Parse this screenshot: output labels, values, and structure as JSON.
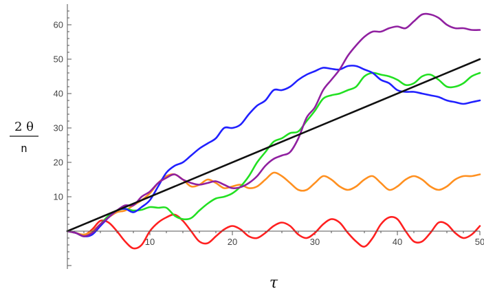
{
  "chart_data": {
    "type": "line",
    "title": "",
    "xlabel": "τ",
    "ylabel": {
      "numerator": "2 θ",
      "denominator": "n"
    },
    "xlim": [
      0,
      50
    ],
    "ylim": [
      -11,
      66
    ],
    "xticks": [
      10,
      20,
      30,
      40,
      50
    ],
    "yticks": [
      10,
      20,
      30,
      40,
      50,
      60
    ],
    "grid": false,
    "legend": "none",
    "series": [
      {
        "color": "#ff2020",
        "x": [
          0,
          1,
          2,
          3,
          4,
          5,
          6,
          7,
          8,
          9,
          10,
          11,
          12,
          13,
          14,
          15,
          16,
          17,
          18,
          19,
          20,
          21,
          22,
          23,
          24,
          25,
          26,
          27,
          28,
          29,
          30,
          31,
          32,
          33,
          34,
          35,
          36,
          37,
          38,
          39,
          40,
          41,
          42,
          43,
          44,
          45,
          46,
          47,
          48,
          49,
          50
        ],
        "y": [
          0,
          -0.5,
          -1.2,
          0.5,
          3,
          2.5,
          0,
          -3,
          -5,
          -4,
          0,
          2.5,
          4,
          4.8,
          3,
          0,
          -3,
          -3.5,
          -1.5,
          0.5,
          1.5,
          0.5,
          -1.5,
          -2,
          -0.5,
          1.5,
          2.5,
          1.5,
          -1,
          -2,
          -0.5,
          2,
          3.5,
          2.5,
          -0.5,
          -3,
          -4.5,
          -2,
          2,
          4,
          3.5,
          0,
          -3,
          -3,
          -0.5,
          2.5,
          2,
          -0.5,
          -2,
          -1,
          1.5
        ]
      },
      {
        "color": "#ff9020",
        "x": [
          0,
          1,
          2,
          3,
          4,
          5,
          6,
          7,
          8,
          9,
          10,
          11,
          12,
          13,
          14,
          15,
          16,
          17,
          18,
          19,
          20,
          21,
          22,
          23,
          24,
          25,
          26,
          27,
          28,
          29,
          30,
          31,
          32,
          33,
          34,
          35,
          36,
          37,
          38,
          39,
          40,
          41,
          42,
          43,
          44,
          45,
          46,
          47,
          48,
          49,
          50
        ],
        "y": [
          0,
          -0.5,
          -1,
          0,
          2,
          4,
          5.5,
          6,
          7.5,
          9,
          11,
          14,
          16,
          16.5,
          15,
          13,
          13.5,
          15,
          14,
          12.5,
          13,
          13.5,
          12.5,
          13,
          15,
          17,
          16,
          14,
          12,
          12,
          14,
          16,
          15,
          13,
          12,
          13,
          15,
          16,
          14,
          12,
          13,
          15,
          16,
          15,
          13,
          12,
          13,
          15,
          16,
          16,
          16.5
        ]
      },
      {
        "color": "#22e022",
        "x": [
          0,
          1,
          2,
          3,
          4,
          5,
          6,
          7,
          8,
          9,
          10,
          11,
          12,
          13,
          14,
          15,
          16,
          17,
          18,
          19,
          20,
          21,
          22,
          23,
          24,
          25,
          26,
          27,
          28,
          29,
          30,
          31,
          32,
          33,
          34,
          35,
          36,
          37,
          38,
          39,
          40,
          41,
          42,
          43,
          44,
          45,
          46,
          47,
          48,
          49,
          50
        ],
        "y": [
          0,
          -0.5,
          -1.5,
          -0.5,
          2,
          4.5,
          6,
          6.5,
          6,
          6.2,
          7,
          6.8,
          6.8,
          4.5,
          3.5,
          3.8,
          6,
          8,
          9.5,
          10,
          11,
          13,
          16,
          20,
          23,
          26,
          27,
          28.5,
          29,
          32,
          35,
          38.5,
          39.5,
          40,
          41,
          42,
          45,
          46,
          45.5,
          45,
          44,
          42.5,
          43,
          45,
          45.5,
          44,
          42,
          42,
          43,
          45,
          46
        ]
      },
      {
        "color": "#2020ff",
        "x": [
          0,
          1,
          2,
          3,
          4,
          5,
          6,
          7,
          8,
          9,
          10,
          11,
          12,
          13,
          14,
          15,
          16,
          17,
          18,
          19,
          20,
          21,
          22,
          23,
          24,
          25,
          26,
          27,
          28,
          29,
          30,
          31,
          32,
          33,
          34,
          35,
          36,
          37,
          38,
          39,
          40,
          41,
          42,
          43,
          44,
          45,
          46,
          47,
          48,
          49,
          50
        ],
        "y": [
          0,
          -0.5,
          -1.5,
          -1,
          1.5,
          4,
          6,
          6.5,
          5.5,
          7,
          9,
          13,
          17,
          19,
          20,
          22,
          24,
          25.5,
          27,
          30,
          30,
          31,
          34,
          36.5,
          38,
          41,
          41,
          42,
          44,
          45.5,
          46.5,
          47.5,
          47.2,
          47,
          48,
          48,
          47,
          46,
          44,
          43,
          41,
          40.5,
          40.5,
          40,
          39.5,
          39,
          38,
          37.5,
          37,
          37.5,
          38
        ]
      },
      {
        "color": "#9020a0",
        "x": [
          0,
          1,
          2,
          3,
          4,
          5,
          6,
          7,
          8,
          9,
          10,
          11,
          12,
          13,
          14,
          15,
          16,
          17,
          18,
          19,
          20,
          21,
          22,
          23,
          24,
          25,
          26,
          27,
          28,
          29,
          30,
          31,
          32,
          33,
          34,
          35,
          36,
          37,
          38,
          39,
          40,
          41,
          42,
          43,
          44,
          45,
          46,
          47,
          48,
          49,
          50
        ],
        "y": [
          0,
          -0.5,
          -1.5,
          -0.5,
          2,
          4,
          6,
          7.5,
          7.5,
          10,
          11.5,
          14,
          15.5,
          16.5,
          15,
          14,
          13.5,
          14,
          14.5,
          13.5,
          12.5,
          12.8,
          14,
          16,
          19,
          21,
          22,
          23,
          27,
          33,
          36,
          41,
          44,
          47,
          51,
          54,
          56.5,
          58,
          58,
          59,
          59.5,
          59,
          61,
          63,
          63,
          62,
          60,
          59,
          59,
          58.5,
          58.5
        ]
      },
      {
        "color": "#111111",
        "x": [
          0,
          50
        ],
        "y": [
          0,
          50
        ]
      }
    ]
  }
}
